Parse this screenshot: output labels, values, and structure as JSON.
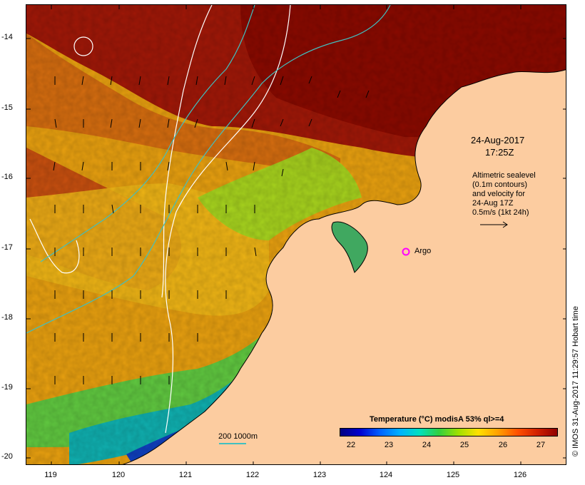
{
  "map": {
    "lat_labels": [
      "-14",
      "-15",
      "-16",
      "-17",
      "-18",
      "-19",
      "-20"
    ],
    "lon_labels": [
      "119",
      "120",
      "121",
      "122",
      "123",
      "124",
      "125",
      "126"
    ],
    "lon_range": [
      118.65,
      126.7
    ],
    "lat_range": [
      -20.1,
      -13.6
    ]
  },
  "annotations": {
    "date": "24-Aug-2017",
    "time": "17:25Z",
    "info_lines": [
      "Altimetric sealevel",
      "(0.1m contours)",
      "and velocity for",
      "24-Aug 17Z",
      "0.5m/s (1kt 24h)"
    ],
    "argo_label": "Argo",
    "scale_label": "200  1000m"
  },
  "legend": {
    "title": "Temperature (°C) modisA 53% ql>=4",
    "ticks": [
      "22",
      "23",
      "24",
      "25",
      "26",
      "27"
    ]
  },
  "credit": "© IMOS 31-Aug-2017 11:29:57 Hobart time",
  "colors": {
    "land": "#fccca0",
    "bathymetry_contour": "#40c0c0",
    "argo_marker": "#ff00ff",
    "sealevel_contour": "#ffffff"
  }
}
